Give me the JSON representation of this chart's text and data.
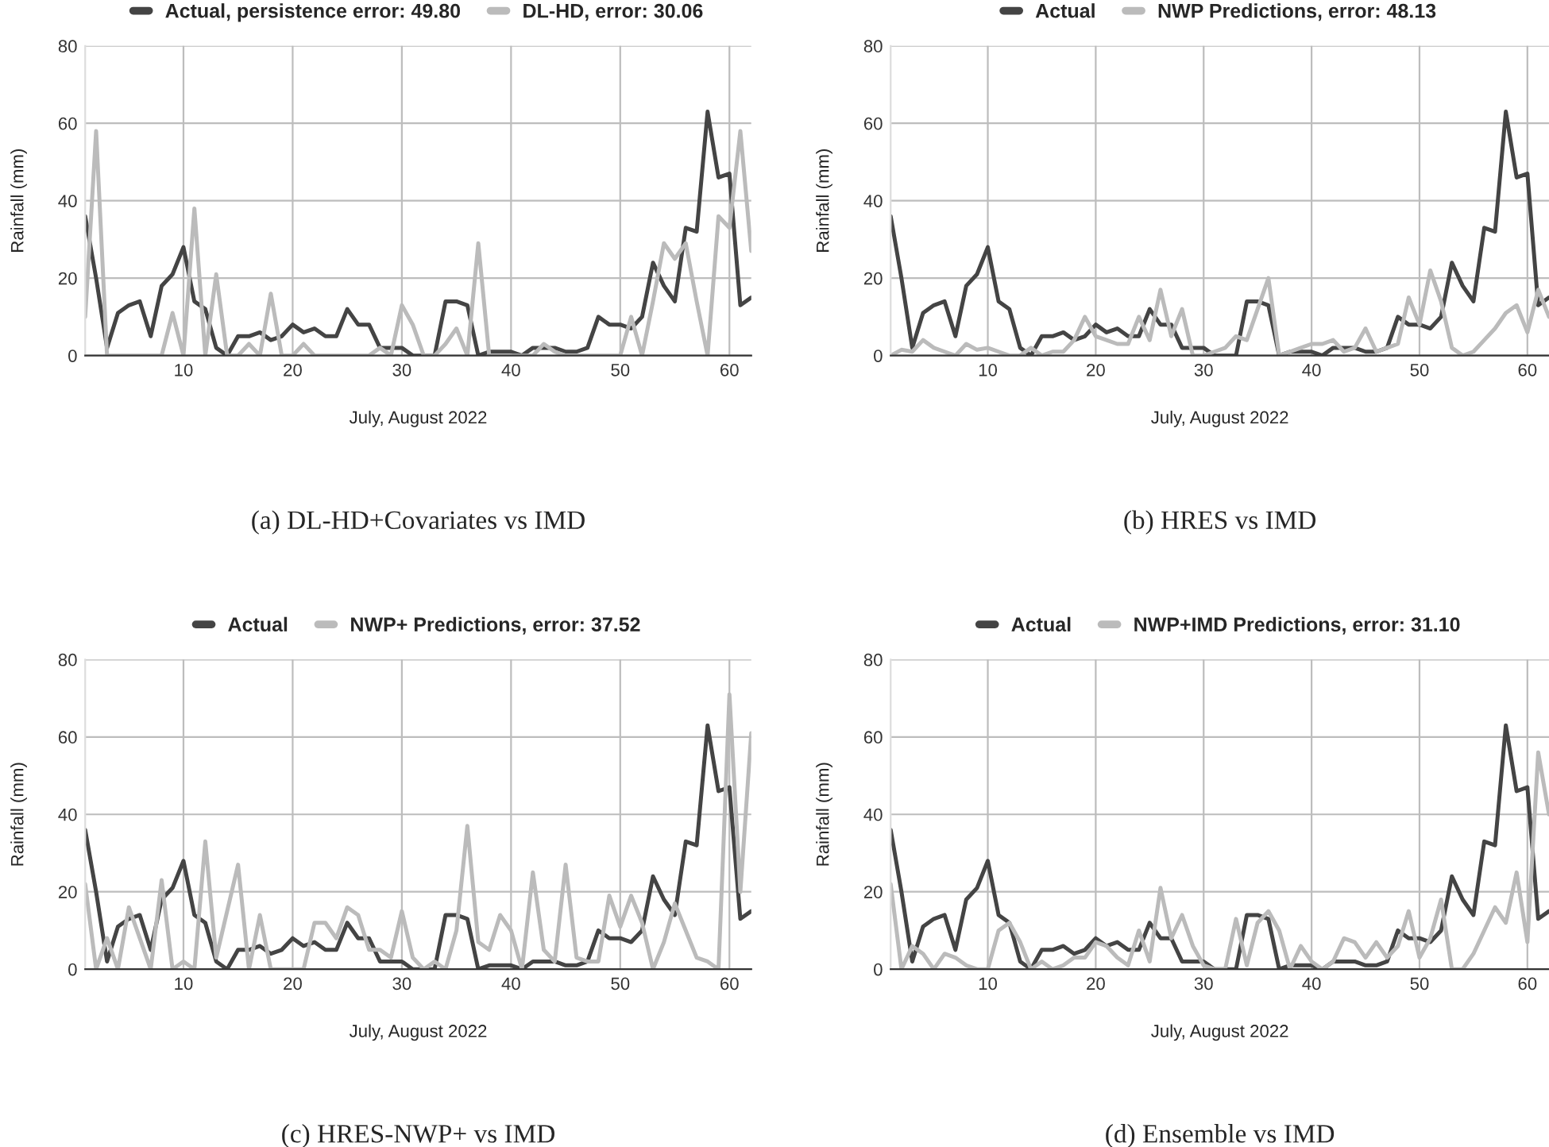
{
  "chart_data": [
    {
      "type": "line",
      "xlabel": "July, August 2022",
      "ylabel": "Rainfall (mm)",
      "x": [
        1,
        2,
        3,
        4,
        5,
        6,
        7,
        8,
        9,
        10,
        11,
        12,
        13,
        14,
        15,
        16,
        17,
        18,
        19,
        20,
        21,
        22,
        23,
        24,
        25,
        26,
        27,
        28,
        29,
        30,
        31,
        32,
        33,
        34,
        35,
        36,
        37,
        38,
        39,
        40,
        41,
        42,
        43,
        44,
        45,
        46,
        47,
        48,
        49,
        50,
        51,
        52,
        53,
        54,
        55,
        56,
        57,
        58,
        59,
        60,
        61,
        62
      ],
      "xlim": [
        1,
        62
      ],
      "xticks": [
        10,
        20,
        30,
        40,
        50,
        60
      ],
      "ylim": [
        0,
        80
      ],
      "yticks": [
        0,
        20,
        40,
        60,
        80
      ],
      "grid": true,
      "legend": "top",
      "line_style": "solid",
      "annotations": [
        "(a) DL-HD+Covariates vs IMD"
      ],
      "series": [
        {
          "name": "Actual, persistence error: 49.80",
          "color": "#444444",
          "values": [
            36,
            20,
            2,
            11,
            13,
            14,
            5,
            18,
            21,
            28,
            14,
            12,
            2,
            0,
            5,
            5,
            6,
            4,
            5,
            8,
            6,
            7,
            5,
            5,
            12,
            8,
            8,
            2,
            2,
            2,
            0,
            0,
            0,
            14,
            14,
            13,
            0,
            1,
            1,
            1,
            0,
            2,
            2,
            2,
            1,
            1,
            2,
            10,
            8,
            8,
            7,
            10,
            24,
            18,
            14,
            33,
            32,
            63,
            46,
            47,
            13,
            15
          ]
        },
        {
          "name": "DL-HD, error: 30.06",
          "color": "#bbbbbb",
          "values": [
            10,
            58,
            0,
            0,
            0,
            0,
            0,
            0,
            11,
            0,
            38,
            0,
            21,
            0,
            0,
            3,
            0,
            16,
            0,
            0,
            3,
            0,
            0,
            0,
            0,
            0,
            0,
            2,
            0,
            13,
            8,
            0,
            0,
            3,
            7,
            0,
            29,
            0,
            0,
            0,
            0,
            0,
            3,
            1,
            0,
            0,
            0,
            0,
            0,
            0,
            10,
            0,
            14,
            29,
            25,
            29,
            14,
            0,
            36,
            33,
            58,
            27
          ]
        }
      ]
    },
    {
      "type": "line",
      "xlabel": "July, August 2022",
      "ylabel": "Rainfall (mm)",
      "x": [
        1,
        2,
        3,
        4,
        5,
        6,
        7,
        8,
        9,
        10,
        11,
        12,
        13,
        14,
        15,
        16,
        17,
        18,
        19,
        20,
        21,
        22,
        23,
        24,
        25,
        26,
        27,
        28,
        29,
        30,
        31,
        32,
        33,
        34,
        35,
        36,
        37,
        38,
        39,
        40,
        41,
        42,
        43,
        44,
        45,
        46,
        47,
        48,
        49,
        50,
        51,
        52,
        53,
        54,
        55,
        56,
        57,
        58,
        59,
        60,
        61,
        62
      ],
      "xlim": [
        1,
        62
      ],
      "xticks": [
        10,
        20,
        30,
        40,
        50,
        60
      ],
      "ylim": [
        0,
        80
      ],
      "yticks": [
        0,
        20,
        40,
        60,
        80
      ],
      "grid": true,
      "legend": "top",
      "line_style": "solid",
      "annotations": [
        "(b) HRES vs IMD"
      ],
      "series": [
        {
          "name": "Actual",
          "color": "#444444",
          "values": [
            36,
            20,
            2,
            11,
            13,
            14,
            5,
            18,
            21,
            28,
            14,
            12,
            2,
            0,
            5,
            5,
            6,
            4,
            5,
            8,
            6,
            7,
            5,
            5,
            12,
            8,
            8,
            2,
            2,
            2,
            0,
            0,
            0,
            14,
            14,
            13,
            0,
            1,
            1,
            1,
            0,
            2,
            2,
            2,
            1,
            1,
            2,
            10,
            8,
            8,
            7,
            10,
            24,
            18,
            14,
            33,
            32,
            63,
            46,
            47,
            13,
            15
          ]
        },
        {
          "name": "NWP Predictions, error: 48.13",
          "color": "#bbbbbb",
          "values": [
            0,
            1.5,
            1,
            4,
            2,
            1,
            0,
            3,
            1.5,
            2,
            1,
            0,
            0,
            2,
            0,
            1,
            1,
            4,
            10,
            5,
            4,
            3,
            3,
            10,
            4,
            17,
            5,
            12,
            0,
            0,
            1,
            2,
            5,
            4,
            12,
            20,
            0,
            1,
            2,
            3,
            3,
            4,
            1,
            2,
            7,
            1,
            2,
            3,
            15,
            8,
            22,
            14,
            2,
            0,
            1,
            4,
            7,
            11,
            13,
            6,
            17,
            10
          ]
        }
      ]
    },
    {
      "type": "line",
      "xlabel": "July, August 2022",
      "ylabel": "Rainfall (mm)",
      "x": [
        1,
        2,
        3,
        4,
        5,
        6,
        7,
        8,
        9,
        10,
        11,
        12,
        13,
        14,
        15,
        16,
        17,
        18,
        19,
        20,
        21,
        22,
        23,
        24,
        25,
        26,
        27,
        28,
        29,
        30,
        31,
        32,
        33,
        34,
        35,
        36,
        37,
        38,
        39,
        40,
        41,
        42,
        43,
        44,
        45,
        46,
        47,
        48,
        49,
        50,
        51,
        52,
        53,
        54,
        55,
        56,
        57,
        58,
        59,
        60,
        61,
        62
      ],
      "xlim": [
        1,
        62
      ],
      "xticks": [
        10,
        20,
        30,
        40,
        50,
        60
      ],
      "ylim": [
        0,
        80
      ],
      "yticks": [
        0,
        20,
        40,
        60,
        80
      ],
      "grid": true,
      "legend": "top",
      "line_style": "solid",
      "annotations": [
        "(c) HRES-NWP+ vs IMD"
      ],
      "series": [
        {
          "name": "Actual",
          "color": "#444444",
          "values": [
            36,
            20,
            2,
            11,
            13,
            14,
            5,
            18,
            21,
            28,
            14,
            12,
            2,
            0,
            5,
            5,
            6,
            4,
            5,
            8,
            6,
            7,
            5,
            5,
            12,
            8,
            8,
            2,
            2,
            2,
            0,
            0,
            0,
            14,
            14,
            13,
            0,
            1,
            1,
            1,
            0,
            2,
            2,
            2,
            1,
            1,
            2,
            10,
            8,
            8,
            7,
            10,
            24,
            18,
            14,
            33,
            32,
            63,
            46,
            47,
            13,
            15
          ]
        },
        {
          "name": "NWP+ Predictions, error: 37.52",
          "color": "#bbbbbb",
          "values": [
            22,
            0,
            8,
            0,
            16,
            8,
            0,
            23,
            0,
            2,
            0,
            33,
            3,
            15,
            27,
            0,
            14,
            0,
            0,
            0,
            0,
            12,
            12,
            8,
            16,
            14,
            5,
            5,
            3,
            15,
            3,
            0,
            2,
            0,
            10,
            37,
            7,
            5,
            14,
            10,
            0,
            25,
            5,
            2,
            27,
            3,
            2,
            2,
            19,
            11,
            19,
            12,
            0,
            7,
            17,
            10,
            3,
            2,
            0,
            71,
            20,
            61
          ]
        }
      ]
    },
    {
      "type": "line",
      "xlabel": "July, August 2022",
      "ylabel": "Rainfall (mm)",
      "x": [
        1,
        2,
        3,
        4,
        5,
        6,
        7,
        8,
        9,
        10,
        11,
        12,
        13,
        14,
        15,
        16,
        17,
        18,
        19,
        20,
        21,
        22,
        23,
        24,
        25,
        26,
        27,
        28,
        29,
        30,
        31,
        32,
        33,
        34,
        35,
        36,
        37,
        38,
        39,
        40,
        41,
        42,
        43,
        44,
        45,
        46,
        47,
        48,
        49,
        50,
        51,
        52,
        53,
        54,
        55,
        56,
        57,
        58,
        59,
        60,
        61,
        62
      ],
      "xlim": [
        1,
        62
      ],
      "xticks": [
        10,
        20,
        30,
        40,
        50,
        60
      ],
      "ylim": [
        0,
        80
      ],
      "yticks": [
        0,
        20,
        40,
        60,
        80
      ],
      "grid": true,
      "legend": "top",
      "line_style": "solid",
      "annotations": [
        "(d) Ensemble vs IMD"
      ],
      "series": [
        {
          "name": "Actual",
          "color": "#444444",
          "values": [
            36,
            20,
            2,
            11,
            13,
            14,
            5,
            18,
            21,
            28,
            14,
            12,
            2,
            0,
            5,
            5,
            6,
            4,
            5,
            8,
            6,
            7,
            5,
            5,
            12,
            8,
            8,
            2,
            2,
            2,
            0,
            0,
            0,
            14,
            14,
            13,
            0,
            1,
            1,
            1,
            0,
            2,
            2,
            2,
            1,
            1,
            2,
            10,
            8,
            8,
            7,
            10,
            24,
            18,
            14,
            33,
            32,
            63,
            46,
            47,
            13,
            15
          ]
        },
        {
          "name": "NWP+IMD Predictions, error: 31.10",
          "color": "#bbbbbb",
          "values": [
            22,
            0,
            6,
            4,
            0,
            4,
            3,
            1,
            0,
            0,
            10,
            12,
            7,
            0,
            2,
            0,
            1,
            3,
            3,
            7,
            6,
            3,
            1,
            10,
            2,
            21,
            8,
            14,
            6,
            1,
            0,
            0,
            13,
            1,
            12,
            15,
            10,
            0,
            6,
            2,
            0,
            2,
            8,
            7,
            3,
            7,
            3,
            6,
            15,
            3,
            8,
            18,
            0,
            0,
            4,
            10,
            16,
            12,
            25,
            7,
            56,
            40
          ]
        }
      ]
    }
  ]
}
